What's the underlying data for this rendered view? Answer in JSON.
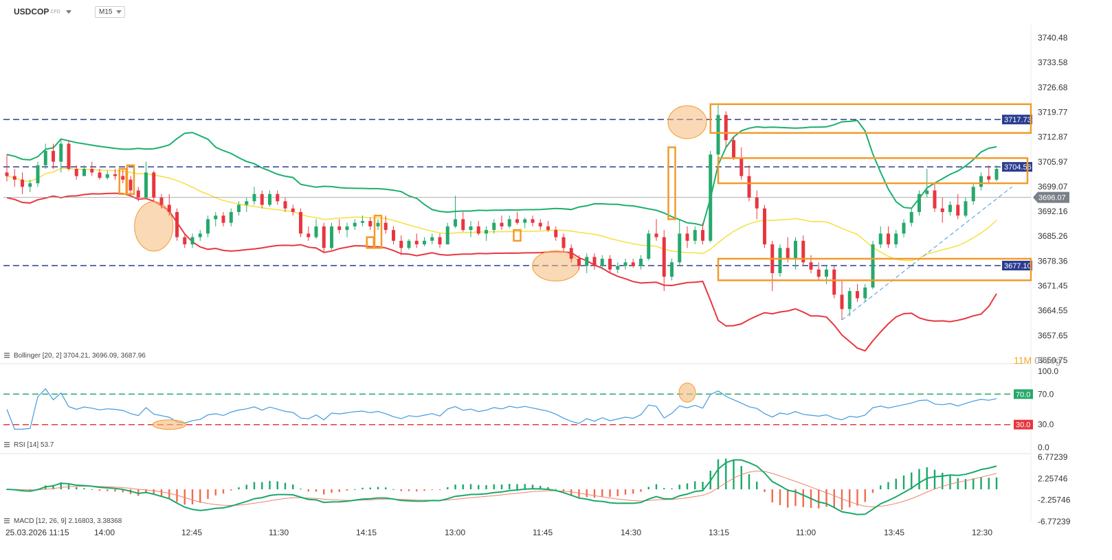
{
  "toolbar": {
    "symbol": "USDCOP",
    "symbol_type": "CFD",
    "timeframe": "M15"
  },
  "timer": {
    "minutes": "11M",
    "seconds": "07seg"
  },
  "colors": {
    "up": "#26a96c",
    "down": "#e8363f",
    "bb_upper": "#1aaf6c",
    "bb_mid": "#f5e03b",
    "bb_lower": "#e8363f",
    "rsi": "#3f99e0",
    "macd_line": "#19a869",
    "signal": "#f0806a",
    "hist_pos": "#19a869",
    "hist_neg": "#ef6b4f",
    "level": "#2b3d8f",
    "box": "#f39a2a",
    "highlight": "#f5b97a"
  },
  "price_axis": {
    "ticks": [
      "3740.48",
      "3733.58",
      "3726.68",
      "3719.77",
      "3712.87",
      "3705.97",
      "3699.07",
      "3692.16",
      "3685.26",
      "3678.36",
      "3671.45",
      "3664.55",
      "3657.65",
      "3650.75"
    ],
    "current_price": "3696.07",
    "level_tags": [
      "3717.73",
      "3704.56",
      "3677.10"
    ]
  },
  "time_axis": {
    "labels": [
      "25.03.2026 11:15",
      "14:00",
      "12:45",
      "11:30",
      "14:15",
      "13:00",
      "11:45",
      "14:30",
      "13:15",
      "11:00",
      "13:45",
      "12:30"
    ]
  },
  "indicators": {
    "bollinger": {
      "label": "Bollinger [20, 2] 3704.21, 3696.09, 3687.96",
      "upper": 3704.21,
      "middle": 3696.09,
      "lower": 3687.96
    },
    "rsi": {
      "label": "RSI [14] 53.7",
      "value": 53.7,
      "ticks": [
        "100.0",
        "70.0",
        "30.0",
        "0.0"
      ],
      "overbought": "70.0",
      "oversold": "30.0"
    },
    "macd": {
      "label": "MACD [12, 26, 9] 2.16803, 3.38368",
      "ticks": [
        "6.77239",
        "2.25746",
        "-2.25746",
        "-6.77239"
      ]
    }
  },
  "chart_data": {
    "type": "candlestick",
    "title": "USDCOP",
    "timeframe": "M15",
    "ylim": [
      3650.75,
      3740.48
    ],
    "horizontal_levels": [
      3717.73,
      3704.56,
      3677.1
    ],
    "current_price": 3696.07,
    "candles_ohlc": [
      [
        3703.0,
        3708.0,
        3700.5,
        3702.0
      ],
      [
        3702.0,
        3704.0,
        3699.0,
        3701.0
      ],
      [
        3701.0,
        3703.0,
        3697.0,
        3699.0
      ],
      [
        3699.0,
        3701.0,
        3697.5,
        3700.0
      ],
      [
        3700.0,
        3706.0,
        3699.0,
        3705.0
      ],
      [
        3705.0,
        3711.0,
        3704.0,
        3709.0
      ],
      [
        3709.0,
        3711.0,
        3704.0,
        3706.0
      ],
      [
        3706.0,
        3712.0,
        3703.0,
        3711.0
      ],
      [
        3711.0,
        3712.0,
        3703.5,
        3704.0
      ],
      [
        3704.0,
        3705.0,
        3701.0,
        3702.0
      ],
      [
        3702.0,
        3705.0,
        3702.0,
        3704.0
      ],
      [
        3704.0,
        3706.0,
        3702.0,
        3703.0
      ],
      [
        3703.0,
        3704.0,
        3701.0,
        3701.5
      ],
      [
        3701.5,
        3703.5,
        3701.0,
        3702.5
      ],
      [
        3702.5,
        3704.0,
        3701.0,
        3702.0
      ],
      [
        3702.0,
        3704.0,
        3700.0,
        3701.0
      ],
      [
        3701.0,
        3702.0,
        3697.0,
        3698.0
      ],
      [
        3698.0,
        3699.0,
        3695.0,
        3696.0
      ],
      [
        3696.0,
        3706.0,
        3695.5,
        3703.0
      ],
      [
        3703.0,
        3703.5,
        3695.0,
        3696.0
      ],
      [
        3696.0,
        3697.0,
        3693.0,
        3694.0
      ],
      [
        3694.0,
        3697.0,
        3691.0,
        3692.0
      ],
      [
        3692.0,
        3693.0,
        3684.0,
        3685.0
      ],
      [
        3685.0,
        3686.0,
        3682.0,
        3683.0
      ],
      [
        3683.0,
        3686.0,
        3682.0,
        3685.0
      ],
      [
        3685.0,
        3687.0,
        3684.0,
        3686.0
      ],
      [
        3686.0,
        3691.0,
        3685.0,
        3690.0
      ],
      [
        3690.0,
        3692.0,
        3688.0,
        3691.0
      ],
      [
        3691.0,
        3692.0,
        3688.0,
        3689.0
      ],
      [
        3689.0,
        3693.0,
        3688.0,
        3692.0
      ],
      [
        3692.0,
        3695.0,
        3691.0,
        3694.0
      ],
      [
        3694.0,
        3696.0,
        3692.0,
        3695.0
      ],
      [
        3695.0,
        3699.0,
        3694.0,
        3697.0
      ],
      [
        3697.0,
        3698.0,
        3693.0,
        3694.0
      ],
      [
        3694.0,
        3698.0,
        3693.5,
        3697.0
      ],
      [
        3697.0,
        3698.0,
        3694.0,
        3695.0
      ],
      [
        3695.0,
        3696.0,
        3692.0,
        3693.0
      ],
      [
        3693.0,
        3694.0,
        3691.0,
        3692.0
      ],
      [
        3692.0,
        3693.0,
        3685.0,
        3686.0
      ],
      [
        3686.0,
        3688.0,
        3684.0,
        3685.0
      ],
      [
        3685.0,
        3690.0,
        3684.5,
        3688.0
      ],
      [
        3688.0,
        3689.0,
        3681.0,
        3682.0
      ],
      [
        3682.0,
        3689.0,
        3681.5,
        3688.0
      ],
      [
        3688.0,
        3690.0,
        3686.0,
        3687.0
      ],
      [
        3687.0,
        3689.0,
        3685.0,
        3688.0
      ],
      [
        3688.0,
        3690.0,
        3687.0,
        3689.0
      ],
      [
        3689.0,
        3691.0,
        3688.0,
        3689.5
      ],
      [
        3689.5,
        3690.5,
        3687.0,
        3688.0
      ],
      [
        3688.0,
        3690.0,
        3687.0,
        3689.0
      ],
      [
        3689.0,
        3691.0,
        3686.0,
        3687.0
      ],
      [
        3687.0,
        3688.0,
        3683.0,
        3684.0
      ],
      [
        3684.0,
        3685.5,
        3680.0,
        3682.0
      ],
      [
        3682.0,
        3684.5,
        3681.5,
        3684.0
      ],
      [
        3684.0,
        3686.0,
        3682.0,
        3683.0
      ],
      [
        3683.0,
        3685.0,
        3682.5,
        3684.0
      ],
      [
        3684.0,
        3686.0,
        3683.0,
        3685.0
      ],
      [
        3685.0,
        3686.0,
        3682.0,
        3683.0
      ],
      [
        3683.0,
        3689.0,
        3683.0,
        3688.0
      ],
      [
        3688.0,
        3696.5,
        3687.5,
        3690.0
      ],
      [
        3690.0,
        3692.0,
        3686.5,
        3687.0
      ],
      [
        3687.0,
        3689.5,
        3685.0,
        3688.0
      ],
      [
        3688.0,
        3689.5,
        3685.5,
        3686.0
      ],
      [
        3686.0,
        3688.0,
        3684.0,
        3687.0
      ],
      [
        3687.0,
        3690.0,
        3686.0,
        3689.0
      ],
      [
        3689.0,
        3691.0,
        3687.0,
        3688.0
      ],
      [
        3688.0,
        3691.0,
        3687.5,
        3690.0
      ],
      [
        3690.0,
        3692.0,
        3688.5,
        3689.0
      ],
      [
        3689.0,
        3690.5,
        3687.5,
        3690.0
      ],
      [
        3690.0,
        3691.0,
        3688.0,
        3689.0
      ],
      [
        3689.0,
        3690.0,
        3687.0,
        3688.0
      ],
      [
        3688.0,
        3689.5,
        3686.5,
        3687.0
      ],
      [
        3687.0,
        3688.0,
        3684.0,
        3685.0
      ],
      [
        3685.0,
        3686.0,
        3681.0,
        3682.0
      ],
      [
        3682.0,
        3683.0,
        3678.0,
        3679.0
      ],
      [
        3679.0,
        3680.0,
        3676.0,
        3677.0
      ],
      [
        3677.0,
        3680.5,
        3675.0,
        3679.5
      ],
      [
        3679.5,
        3680.5,
        3676.0,
        3677.0
      ],
      [
        3677.0,
        3680.0,
        3676.0,
        3679.0
      ],
      [
        3679.0,
        3680.0,
        3675.0,
        3676.0
      ],
      [
        3676.0,
        3678.0,
        3675.0,
        3677.0
      ],
      [
        3677.0,
        3679.0,
        3676.0,
        3678.0
      ],
      [
        3678.0,
        3679.0,
        3676.5,
        3677.0
      ],
      [
        3677.0,
        3680.0,
        3676.0,
        3679.0
      ],
      [
        3679.0,
        3687.0,
        3678.5,
        3686.0
      ],
      [
        3686.0,
        3690.0,
        3684.0,
        3685.0
      ],
      [
        3685.0,
        3687.0,
        3670.0,
        3674.0
      ],
      [
        3674.0,
        3679.0,
        3673.0,
        3678.0
      ],
      [
        3678.0,
        3690.0,
        3677.0,
        3686.0
      ],
      [
        3686.0,
        3688.0,
        3682.0,
        3684.0
      ],
      [
        3684.0,
        3688.0,
        3683.0,
        3687.0
      ],
      [
        3687.0,
        3689.0,
        3683.0,
        3684.0
      ],
      [
        3684.0,
        3709.0,
        3683.5,
        3708.0
      ],
      [
        3708.0,
        3722.0,
        3707.0,
        3719.0
      ],
      [
        3719.0,
        3720.0,
        3710.0,
        3712.0
      ],
      [
        3712.0,
        3713.0,
        3706.5,
        3707.0
      ],
      [
        3707.0,
        3710.0,
        3701.0,
        3702.0
      ],
      [
        3702.0,
        3705.0,
        3695.0,
        3696.0
      ],
      [
        3696.0,
        3698.0,
        3690.0,
        3693.0
      ],
      [
        3693.0,
        3694.0,
        3682.0,
        3683.0
      ],
      [
        3683.0,
        3684.0,
        3670.0,
        3675.0
      ],
      [
        3675.0,
        3683.0,
        3674.0,
        3682.0
      ],
      [
        3682.0,
        3685.0,
        3678.0,
        3679.0
      ],
      [
        3679.0,
        3685.0,
        3676.0,
        3684.0
      ],
      [
        3684.0,
        3685.5,
        3677.0,
        3678.0
      ],
      [
        3678.0,
        3680.0,
        3675.0,
        3676.0
      ],
      [
        3676.0,
        3678.0,
        3673.0,
        3674.0
      ],
      [
        3674.0,
        3677.0,
        3672.0,
        3676.0
      ],
      [
        3676.0,
        3677.0,
        3668.0,
        3669.0
      ],
      [
        3669.0,
        3673.0,
        3662.0,
        3665.0
      ],
      [
        3665.0,
        3671.0,
        3663.0,
        3670.0
      ],
      [
        3670.0,
        3672.0,
        3667.0,
        3668.0
      ],
      [
        3668.0,
        3672.0,
        3667.0,
        3671.0
      ],
      [
        3671.0,
        3684.0,
        3670.5,
        3683.0
      ],
      [
        3683.0,
        3688.0,
        3682.0,
        3686.0
      ],
      [
        3686.0,
        3688.0,
        3682.0,
        3683.0
      ],
      [
        3683.0,
        3687.0,
        3682.0,
        3686.0
      ],
      [
        3686.0,
        3690.0,
        3685.0,
        3689.0
      ],
      [
        3689.0,
        3693.0,
        3688.0,
        3692.0
      ],
      [
        3692.0,
        3698.0,
        3691.0,
        3697.0
      ],
      [
        3697.0,
        3704.0,
        3696.0,
        3698.0
      ],
      [
        3698.0,
        3700.0,
        3692.0,
        3693.0
      ],
      [
        3693.0,
        3696.0,
        3689.0,
        3692.0
      ],
      [
        3692.0,
        3695.0,
        3691.0,
        3694.0
      ],
      [
        3694.0,
        3697.0,
        3690.0,
        3691.0
      ],
      [
        3691.0,
        3696.0,
        3690.5,
        3695.0
      ],
      [
        3695.0,
        3700.0,
        3694.0,
        3699.0
      ],
      [
        3699.0,
        3703.0,
        3698.0,
        3702.0
      ],
      [
        3702.0,
        3705.0,
        3700.0,
        3701.0
      ],
      [
        3701.0,
        3705.0,
        3700.5,
        3704.0
      ]
    ]
  }
}
